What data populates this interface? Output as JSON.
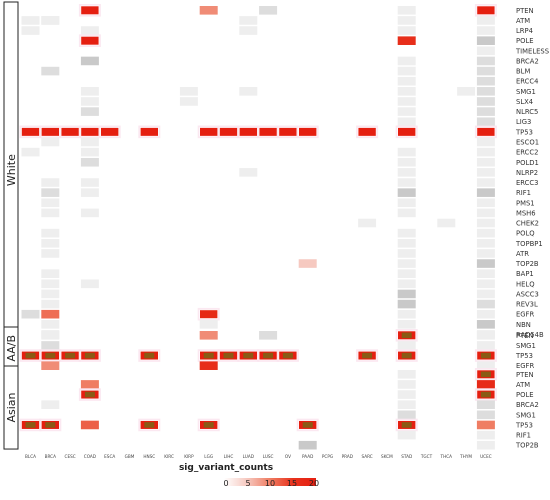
{
  "chart_data": {
    "type": "heatmap",
    "title": "",
    "legend": {
      "title": "sig_variant_counts",
      "ticks": [
        0,
        5,
        10,
        15,
        20
      ],
      "range": [
        0,
        20
      ],
      "colors": [
        "#ffffff",
        "#f6c9c0",
        "#ef7d63",
        "#e8321d",
        "#e51f10"
      ]
    },
    "cancer_types": [
      "BLCA",
      "BRCA",
      "CESC",
      "COAD",
      "ESCA",
      "GBM",
      "HNSC",
      "KIRC",
      "KIRP",
      "LGG",
      "LIHC",
      "LUAD",
      "LUSC",
      "OV",
      "PAAD",
      "PCPG",
      "PRAD",
      "SARC",
      "SKCM",
      "STAD",
      "TGCT",
      "THCA",
      "THYM",
      "UCEC"
    ],
    "groups": [
      {
        "name": "White",
        "genes": [
          "PTEN",
          "ATM",
          "LRP4",
          "POLE",
          "TIMELESS",
          "BRCA2",
          "BLM",
          "ERCC4",
          "SMG1",
          "SLX4",
          "NLRC5",
          "LIG3",
          "TP53",
          "ESCO1",
          "ERCC2",
          "POLD1",
          "NLRP2",
          "ERCC3",
          "RIF1",
          "PMS1",
          "MSH6",
          "CHEK2",
          "POLQ",
          "TOPBP1",
          "ATR",
          "TOP2B",
          "BAP1",
          "HELQ",
          "ASCC3",
          "REV3L",
          "EGFR",
          "NBN",
          "RAD54B"
        ],
        "cells": [
          [
            0,
            1,
            1
          ],
          [
            1,
            1,
            1
          ],
          [
            3,
            0,
            20
          ],
          [
            9,
            0,
            9
          ],
          [
            12,
            0,
            2
          ],
          [
            19,
            0,
            1
          ],
          [
            23,
            0,
            20
          ],
          [
            1,
            1,
            1
          ],
          [
            11,
            1,
            1
          ],
          [
            19,
            1,
            1
          ],
          [
            23,
            1,
            1
          ],
          [
            0,
            2,
            1
          ],
          [
            3,
            2,
            1
          ],
          [
            11,
            2,
            1
          ],
          [
            19,
            2,
            1
          ],
          [
            23,
            2,
            1
          ],
          [
            3,
            3,
            20
          ],
          [
            19,
            3,
            16
          ],
          [
            23,
            3,
            4
          ],
          [
            23,
            4,
            1
          ],
          [
            3,
            5,
            3
          ],
          [
            19,
            5,
            1
          ],
          [
            23,
            5,
            2
          ],
          [
            1,
            6,
            2
          ],
          [
            19,
            6,
            1
          ],
          [
            23,
            6,
            2
          ],
          [
            19,
            7,
            1
          ],
          [
            23,
            7,
            2
          ],
          [
            3,
            8,
            1
          ],
          [
            8,
            8,
            1
          ],
          [
            11,
            8,
            1
          ],
          [
            19,
            8,
            1
          ],
          [
            22,
            8,
            1
          ],
          [
            23,
            8,
            2
          ],
          [
            3,
            9,
            1
          ],
          [
            8,
            9,
            1
          ],
          [
            19,
            9,
            1
          ],
          [
            23,
            9,
            2
          ],
          [
            3,
            10,
            2
          ],
          [
            19,
            10,
            1
          ],
          [
            23,
            10,
            2
          ],
          [
            19,
            11,
            1
          ],
          [
            23,
            11,
            2
          ],
          [
            0,
            12,
            20
          ],
          [
            1,
            12,
            20
          ],
          [
            2,
            12,
            20
          ],
          [
            3,
            12,
            20
          ],
          [
            4,
            12,
            20
          ],
          [
            6,
            12,
            20
          ],
          [
            9,
            12,
            20
          ],
          [
            10,
            12,
            20
          ],
          [
            11,
            12,
            20
          ],
          [
            12,
            12,
            20
          ],
          [
            13,
            12,
            20
          ],
          [
            14,
            12,
            20
          ],
          [
            17,
            12,
            20
          ],
          [
            19,
            12,
            20
          ],
          [
            23,
            12,
            20
          ],
          [
            1,
            13,
            1
          ],
          [
            3,
            13,
            1
          ],
          [
            23,
            13,
            1
          ],
          [
            0,
            14,
            1
          ],
          [
            3,
            14,
            1
          ],
          [
            19,
            14,
            1
          ],
          [
            23,
            14,
            1
          ],
          [
            3,
            15,
            2
          ],
          [
            19,
            15,
            1
          ],
          [
            23,
            15,
            1
          ],
          [
            11,
            16,
            1
          ],
          [
            19,
            16,
            1
          ],
          [
            23,
            16,
            1
          ],
          [
            1,
            17,
            1
          ],
          [
            3,
            17,
            1
          ],
          [
            19,
            17,
            1
          ],
          [
            23,
            17,
            1
          ],
          [
            1,
            18,
            2
          ],
          [
            3,
            18,
            1
          ],
          [
            19,
            18,
            3
          ],
          [
            23,
            18,
            3
          ],
          [
            1,
            19,
            1
          ],
          [
            19,
            19,
            1
          ],
          [
            23,
            19,
            1
          ],
          [
            1,
            20,
            1
          ],
          [
            3,
            20,
            1
          ],
          [
            19,
            20,
            1
          ],
          [
            23,
            20,
            1
          ],
          [
            17,
            21,
            1
          ],
          [
            21,
            21,
            1
          ],
          [
            23,
            21,
            1
          ],
          [
            1,
            22,
            1
          ],
          [
            19,
            22,
            1
          ],
          [
            23,
            22,
            1
          ],
          [
            1,
            23,
            1
          ],
          [
            19,
            23,
            1
          ],
          [
            23,
            23,
            1
          ],
          [
            1,
            24,
            1
          ],
          [
            19,
            24,
            1
          ],
          [
            23,
            24,
            1
          ],
          [
            14,
            25,
            5
          ],
          [
            19,
            25,
            1
          ],
          [
            23,
            25,
            3
          ],
          [
            1,
            26,
            1
          ],
          [
            19,
            26,
            1
          ],
          [
            23,
            26,
            1
          ],
          [
            1,
            27,
            1
          ],
          [
            3,
            27,
            1
          ],
          [
            19,
            27,
            1
          ],
          [
            23,
            27,
            1
          ],
          [
            1,
            28,
            1
          ],
          [
            19,
            28,
            3
          ],
          [
            23,
            28,
            1
          ],
          [
            1,
            29,
            1
          ],
          [
            19,
            29,
            4
          ],
          [
            23,
            29,
            2
          ],
          [
            0,
            30,
            2
          ],
          [
            1,
            30,
            11
          ],
          [
            9,
            30,
            18
          ],
          [
            19,
            30,
            1
          ],
          [
            23,
            30,
            1
          ],
          [
            1,
            31,
            1
          ],
          [
            9,
            31,
            1
          ],
          [
            19,
            31,
            1
          ],
          [
            23,
            31,
            3
          ],
          [
            1,
            32,
            1
          ],
          [
            19,
            32,
            1
          ],
          [
            23,
            32,
            1
          ]
        ]
      },
      {
        "name": "AA/B",
        "genes": [
          "PTEN",
          "SMG1",
          "TP53",
          "EGFR"
        ],
        "cells": [
          [
            1,
            0,
            1
          ],
          [
            9,
            0,
            9
          ],
          [
            12,
            0,
            2
          ],
          [
            19,
            0,
            20
          ],
          [
            23,
            0,
            1
          ],
          [
            1,
            1,
            2
          ],
          [
            19,
            1,
            1
          ],
          [
            23,
            1,
            1
          ],
          [
            0,
            2,
            20
          ],
          [
            1,
            2,
            20
          ],
          [
            2,
            2,
            20
          ],
          [
            3,
            2,
            20
          ],
          [
            6,
            2,
            20
          ],
          [
            9,
            2,
            20
          ],
          [
            10,
            2,
            20
          ],
          [
            11,
            2,
            20
          ],
          [
            12,
            2,
            20
          ],
          [
            13,
            2,
            20
          ],
          [
            17,
            2,
            20
          ],
          [
            19,
            2,
            20
          ],
          [
            23,
            2,
            20
          ],
          [
            1,
            3,
            9
          ],
          [
            9,
            3,
            16
          ],
          [
            23,
            3,
            1
          ]
        ]
      },
      {
        "name": "Asian",
        "genes": [
          "PTEN",
          "ATM",
          "POLE",
          "BRCA2",
          "SMG1",
          "TP53",
          "RIF1",
          "TOP2B"
        ],
        "cells": [
          [
            19,
            0,
            1
          ],
          [
            23,
            0,
            20
          ],
          [
            3,
            1,
            10
          ],
          [
            19,
            1,
            1
          ],
          [
            23,
            1,
            17
          ],
          [
            3,
            2,
            20
          ],
          [
            19,
            2,
            1
          ],
          [
            23,
            2,
            20
          ],
          [
            1,
            3,
            1
          ],
          [
            19,
            3,
            1
          ],
          [
            23,
            3,
            2
          ],
          [
            19,
            4,
            2
          ],
          [
            23,
            4,
            2
          ],
          [
            0,
            5,
            20
          ],
          [
            1,
            5,
            20
          ],
          [
            3,
            5,
            12
          ],
          [
            6,
            5,
            20
          ],
          [
            9,
            5,
            20
          ],
          [
            14,
            5,
            20
          ],
          [
            19,
            5,
            20
          ],
          [
            23,
            5,
            10
          ],
          [
            19,
            6,
            1
          ],
          [
            23,
            6,
            1
          ],
          [
            14,
            7,
            3
          ],
          [
            23,
            7,
            1
          ]
        ]
      }
    ]
  }
}
